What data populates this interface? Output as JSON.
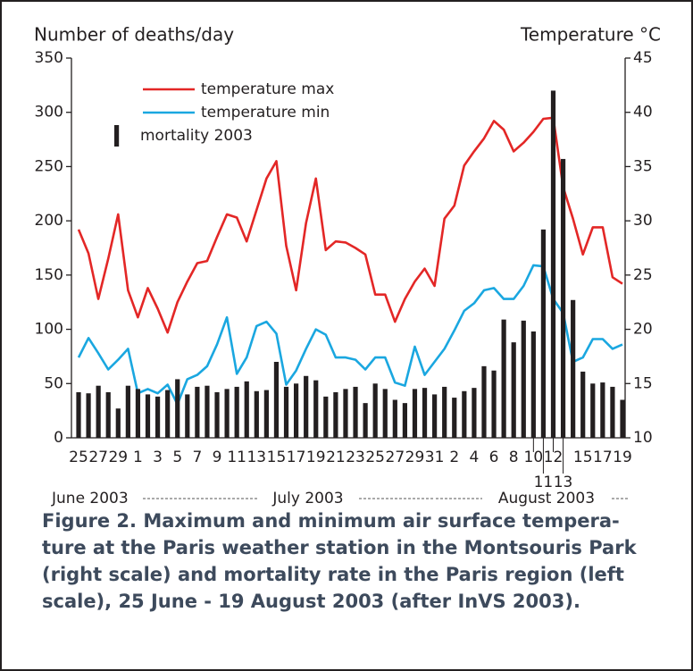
{
  "chart_data": {
    "type": "bar_line",
    "y_label": "Number of deaths/day",
    "y2_label": "Temperature °C",
    "categories": [
      "25",
      null,
      "27",
      null,
      "29",
      null,
      "1",
      null,
      "3",
      null,
      "5",
      null,
      "7",
      null,
      "9",
      null,
      "11",
      null,
      "13",
      null,
      "15",
      null,
      "17",
      null,
      "19",
      null,
      "21",
      null,
      "23",
      null,
      "25",
      null,
      "27",
      null,
      "29",
      null,
      "31",
      null,
      "2",
      null,
      "4",
      null,
      "6",
      null,
      "8",
      null,
      "10",
      "11",
      "12",
      "13",
      null,
      "15",
      null,
      "17",
      null,
      "19"
    ],
    "month_labels": [
      "June 2003",
      "July 2003",
      "August 2003"
    ],
    "ylim": [
      0,
      350
    ],
    "yticks": [
      0,
      50,
      100,
      150,
      200,
      250,
      300,
      350
    ],
    "y2lim": [
      10,
      45
    ],
    "y2ticks": [
      10,
      15,
      20,
      25,
      30,
      35,
      40,
      45
    ],
    "legend": "upper left",
    "series": [
      {
        "name": "temperature max",
        "type": "line",
        "axis": "y2",
        "color": "#e32726",
        "values": [
          29.2,
          27,
          22.8,
          26.5,
          30.6,
          23.6,
          21.1,
          23.8,
          21.9,
          19.7,
          22.5,
          24.4,
          26.1,
          26.3,
          28.5,
          30.6,
          30.3,
          28.1,
          31,
          33.9,
          35.5,
          27.7,
          23.6,
          29.8,
          33.9,
          27.3,
          28.1,
          28,
          27.5,
          26.9,
          23.2,
          23.2,
          20.7,
          22.8,
          24.4,
          25.6,
          24,
          30.2,
          31.4,
          35.1,
          36.4,
          37.6,
          39.2,
          38.4,
          36.4,
          37.2,
          38.2,
          39.4,
          39.5,
          33.1,
          30.2,
          26.9,
          29.4,
          29.4,
          24.8,
          24.2
        ]
      },
      {
        "name": "temperature min",
        "type": "line",
        "axis": "y2",
        "color": "#1aa7e0",
        "values": [
          17.4,
          19.2,
          17.8,
          16.3,
          17.2,
          18.2,
          14.1,
          14.5,
          14.1,
          14.9,
          13.1,
          15.4,
          15.8,
          16.6,
          18.6,
          21.1,
          15.9,
          17.4,
          20.3,
          20.7,
          19.6,
          14.9,
          16.2,
          18.2,
          20,
          19.5,
          17.4,
          17.4,
          17.2,
          16.3,
          17.4,
          17.4,
          15.1,
          14.8,
          18.4,
          15.8,
          17,
          18.2,
          19.9,
          21.7,
          22.4,
          23.6,
          23.8,
          22.8,
          22.8,
          24,
          25.9,
          25.8,
          22.8,
          21.5,
          17,
          17.4,
          19.1,
          19.1,
          18.2,
          18.6
        ]
      },
      {
        "name": "mortality 2003",
        "type": "bar",
        "axis": "y",
        "color": "#231f20",
        "values": [
          42,
          41,
          48,
          42,
          27,
          48,
          45,
          40,
          38,
          44,
          54,
          40,
          47,
          48,
          42,
          45,
          47,
          52,
          43,
          44,
          70,
          47,
          50,
          57,
          53,
          38,
          42,
          45,
          47,
          32,
          50,
          45,
          35,
          32,
          45,
          46,
          40,
          47,
          37,
          43,
          46,
          66,
          62,
          109,
          88,
          108,
          98,
          192,
          320,
          257,
          127,
          61,
          50,
          51,
          47,
          35
        ]
      }
    ]
  },
  "caption": [
    "Figure 2. Maximum and minimum air surface tempera-",
    "ture at the Paris weather station in the Montsouris Park",
    "(right scale) and mortality rate in the Paris region (left",
    "scale), 25 June - 19 August 2003 (after InVS 2003)."
  ]
}
